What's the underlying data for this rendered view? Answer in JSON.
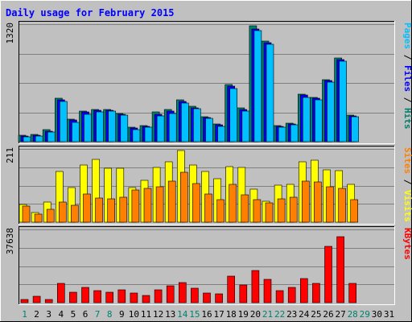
{
  "chart_data": {
    "type": "bar",
    "title": "Daily usage for February 2015",
    "categories": [
      "1",
      "2",
      "3",
      "4",
      "5",
      "6",
      "7",
      "8",
      "9",
      "10",
      "11",
      "12",
      "13",
      "14",
      "15",
      "16",
      "17",
      "18",
      "19",
      "20",
      "21",
      "22",
      "23",
      "24",
      "25",
      "26",
      "27",
      "28",
      "29",
      "30",
      "31"
    ],
    "weekend_days": [
      1,
      7,
      8,
      14,
      15,
      21,
      22,
      28,
      29
    ],
    "panels": [
      {
        "id": "hits-panel",
        "max_label": "1320",
        "ymax": 1320,
        "side_label_parts": [
          {
            "text": "Pages",
            "color": "#00c0ff"
          },
          {
            "text": " / ",
            "color": "#000000"
          },
          {
            "text": "Files",
            "color": "#0000ff"
          },
          {
            "text": " / ",
            "color": "#000000"
          },
          {
            "text": "Hits",
            "color": "#00806f"
          }
        ],
        "series": [
          {
            "name": "Hits",
            "color": "#00806f",
            "values": [
              70,
              80,
              140,
              490,
              250,
              340,
              360,
              360,
              320,
              160,
              180,
              330,
              360,
              470,
              400,
              280,
              200,
              640,
              380,
              1300,
              1130,
              180,
              210,
              530,
              500,
              700,
              940,
              300,
              0,
              0,
              0
            ]
          },
          {
            "name": "Files",
            "color": "#0000ff",
            "values": [
              60,
              70,
              120,
              470,
              240,
              330,
              350,
              350,
              310,
              150,
              170,
              310,
              340,
              450,
              380,
              270,
              190,
              620,
              360,
              1270,
              1110,
              170,
              200,
              520,
              490,
              690,
              920,
              290,
              0,
              0,
              0
            ]
          },
          {
            "name": "Pages",
            "color": "#00c0ff",
            "values": [
              55,
              65,
              110,
              450,
              220,
              310,
              330,
              340,
              300,
              140,
              160,
              290,
              320,
              430,
              370,
              260,
              170,
              600,
              340,
              1250,
              1090,
              160,
              190,
              500,
              470,
              670,
              900,
              280,
              0,
              0,
              0
            ]
          }
        ]
      },
      {
        "id": "visits-panel",
        "max_label": "211",
        "ymax": 211,
        "side_label_parts": [
          {
            "text": "Sites",
            "color": "#ff8000"
          },
          {
            "text": " / ",
            "color": "#000000"
          },
          {
            "text": "Visits",
            "color": "#ffff00"
          }
        ],
        "series": [
          {
            "name": "Visits",
            "color": "#ffff00",
            "values": [
              50,
              28,
              58,
              145,
              100,
              165,
              180,
              155,
              155,
              100,
              120,
              158,
              175,
              206,
              165,
              145,
              125,
              160,
              158,
              95,
              60,
              106,
              110,
              175,
              178,
              150,
              148,
              110,
              0,
              0,
              0
            ]
          },
          {
            "name": "Sites",
            "color": "#ff8000",
            "values": [
              46,
              24,
              38,
              58,
              48,
              80,
              70,
              68,
              72,
              92,
              97,
              102,
              118,
              143,
              112,
              80,
              65,
              108,
              78,
              65,
              56,
              68,
              72,
              118,
              115,
              102,
              98,
              66,
              0,
              0,
              0
            ]
          }
        ]
      },
      {
        "id": "kbytes-panel",
        "max_label": "37638",
        "ymax": 37638,
        "side_label_parts": [
          {
            "text": "KBytes",
            "color": "#ff0000"
          }
        ],
        "series": [
          {
            "name": "KBytes",
            "color": "#ff0000",
            "values": [
              1500,
              3200,
              1800,
              10000,
              5500,
              7800,
              6000,
              5500,
              6500,
              4800,
              3900,
              6500,
              8500,
              10500,
              7500,
              5000,
              4600,
              13800,
              9000,
              16500,
              12000,
              6200,
              7800,
              12400,
              10000,
              29000,
              34000,
              9900,
              0,
              0,
              0
            ]
          }
        ]
      }
    ]
  }
}
